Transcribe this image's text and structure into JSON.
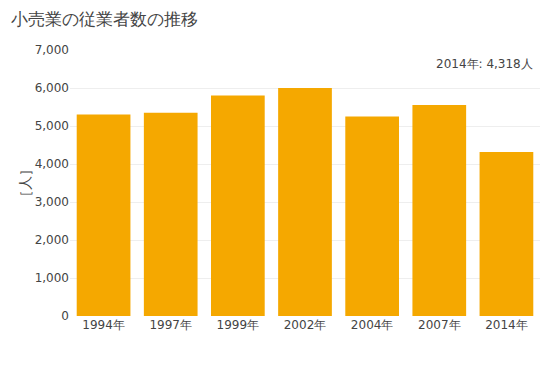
{
  "chart_data": {
    "type": "bar",
    "title": "小売業の従業者数の推移",
    "ylabel": "［人］",
    "annotation": "2014年: 4,318人",
    "categories": [
      "1994年",
      "1997年",
      "1999年",
      "2002年",
      "2004年",
      "2007年",
      "2014年"
    ],
    "values": [
      5300,
      5350,
      5800,
      6000,
      5250,
      5550,
      4318
    ],
    "color": "#F5A800",
    "ylim": [
      0,
      7000
    ],
    "yticks": [
      0,
      {
        "value": 1000,
        "label": "1,000"
      },
      {
        "value": 2000,
        "label": "2,000"
      },
      {
        "value": 3000,
        "label": "3,000"
      },
      {
        "value": 4000,
        "label": "4,000"
      },
      {
        "value": 5000,
        "label": "5,000"
      },
      {
        "value": 6000,
        "label": "6,000"
      },
      {
        "value": 7000,
        "label": "7,000"
      }
    ],
    "grid": true
  }
}
